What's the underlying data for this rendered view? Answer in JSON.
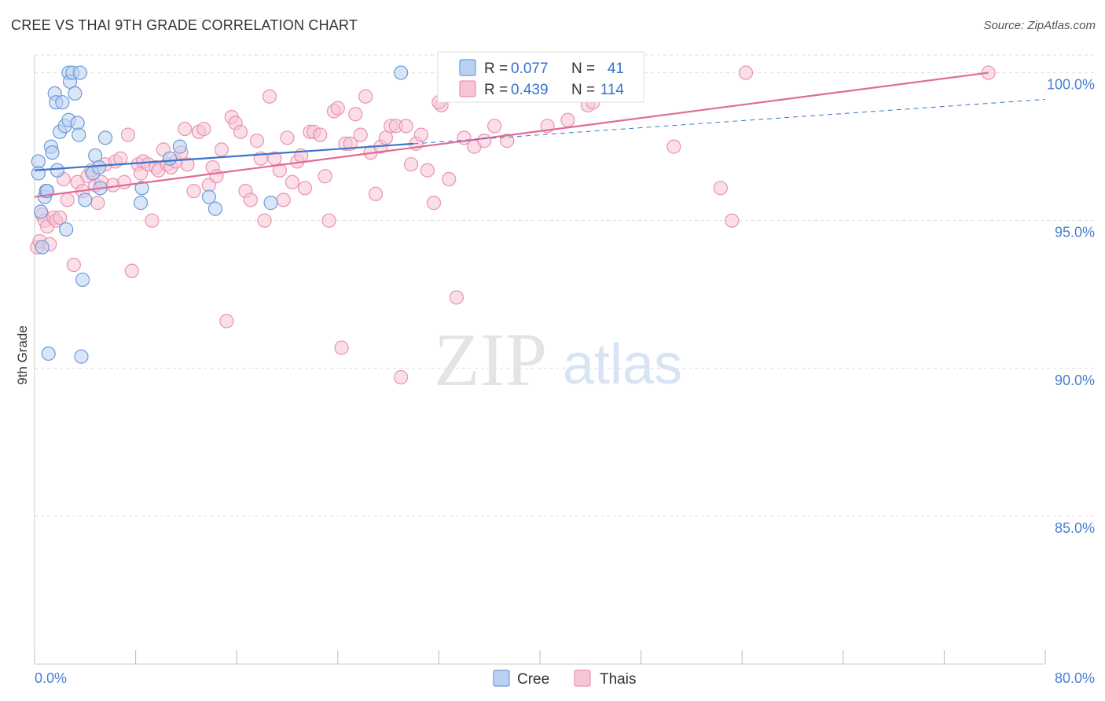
{
  "title": "CREE VS THAI 9TH GRADE CORRELATION CHART",
  "source": "Source: ZipAtlas.com",
  "watermark": {
    "zip": "ZIP",
    "atlas": "atlas"
  },
  "colors": {
    "cree_fill": "#b9d2f2",
    "cree_stroke": "#6f9ad8",
    "cree_line": "#3b74cc",
    "thai_fill": "#f8c5d6",
    "thai_stroke": "#e893b0",
    "thai_line": "#e06c93",
    "grid": "#dddddd",
    "tick_text": "#4a7fd0"
  },
  "legend_top": {
    "rows": [
      {
        "series": "Cree",
        "r_label": "R =",
        "r_value": "0.077",
        "n_label": "N =",
        "n_value": "41"
      },
      {
        "series": "Thais",
        "r_label": "R =",
        "r_value": "0.439",
        "n_label": "N =",
        "n_value": "114"
      }
    ]
  },
  "legend_bottom": [
    "Cree",
    "Thais"
  ],
  "chart_data": {
    "type": "scatter",
    "title": "CREE VS THAI 9TH GRADE CORRELATION CHART",
    "xlabel": "",
    "ylabel": "9th Grade",
    "xlim": [
      0,
      80
    ],
    "ylim": [
      80,
      100.6
    ],
    "x_tick_labels": [
      "0.0%",
      "80.0%"
    ],
    "y_ticks": [
      85,
      90,
      95,
      100
    ],
    "y_tick_labels": [
      "85.0%",
      "90.0%",
      "95.0%",
      "100.0%"
    ],
    "grid": true,
    "legend_position": "top-center",
    "series": [
      {
        "name": "Cree",
        "r": 0.077,
        "n": 41,
        "trend": {
          "x": [
            0,
            30
          ],
          "y": [
            96.7,
            97.6
          ],
          "extended_x": [
            30,
            80
          ],
          "extended_y": [
            97.6,
            99.1
          ]
        },
        "points": [
          [
            0.3,
            97.0
          ],
          [
            0.3,
            96.6
          ],
          [
            0.5,
            95.3
          ],
          [
            0.6,
            94.1
          ],
          [
            0.8,
            95.8
          ],
          [
            0.9,
            96.0
          ],
          [
            1.0,
            96.0
          ],
          [
            1.1,
            90.5
          ],
          [
            1.3,
            97.5
          ],
          [
            1.4,
            97.3
          ],
          [
            1.6,
            99.3
          ],
          [
            1.7,
            99.0
          ],
          [
            1.8,
            96.7
          ],
          [
            2.0,
            98.0
          ],
          [
            2.2,
            99.0
          ],
          [
            2.4,
            98.2
          ],
          [
            2.5,
            94.7
          ],
          [
            2.7,
            98.4
          ],
          [
            2.7,
            100.0
          ],
          [
            2.8,
            99.7
          ],
          [
            3.0,
            100.0
          ],
          [
            3.2,
            99.3
          ],
          [
            3.4,
            98.3
          ],
          [
            3.5,
            97.9
          ],
          [
            3.6,
            100.0
          ],
          [
            3.7,
            90.4
          ],
          [
            3.8,
            93.0
          ],
          [
            4.0,
            95.7
          ],
          [
            4.6,
            96.6
          ],
          [
            4.8,
            97.2
          ],
          [
            5.1,
            96.8
          ],
          [
            5.2,
            96.1
          ],
          [
            5.6,
            97.8
          ],
          [
            8.4,
            95.6
          ],
          [
            8.5,
            96.1
          ],
          [
            10.7,
            97.1
          ],
          [
            11.5,
            97.5
          ],
          [
            13.8,
            95.8
          ],
          [
            14.3,
            95.4
          ],
          [
            18.7,
            95.6
          ],
          [
            29.0,
            100.0
          ]
        ]
      },
      {
        "name": "Thais",
        "r": 0.439,
        "n": 114,
        "trend": {
          "x": [
            0,
            75.5
          ],
          "y": [
            95.8,
            100.0
          ]
        },
        "points": [
          [
            0.2,
            94.1
          ],
          [
            0.4,
            94.3
          ],
          [
            0.6,
            95.2
          ],
          [
            0.8,
            95.0
          ],
          [
            1.0,
            94.8
          ],
          [
            1.2,
            94.2
          ],
          [
            1.5,
            95.1
          ],
          [
            1.7,
            95.0
          ],
          [
            2.0,
            95.1
          ],
          [
            2.3,
            96.4
          ],
          [
            2.6,
            95.7
          ],
          [
            3.1,
            93.5
          ],
          [
            3.4,
            96.3
          ],
          [
            3.8,
            96.0
          ],
          [
            4.2,
            96.5
          ],
          [
            4.5,
            96.7
          ],
          [
            4.8,
            96.2
          ],
          [
            5.0,
            95.6
          ],
          [
            5.3,
            96.3
          ],
          [
            5.6,
            96.9
          ],
          [
            6.2,
            96.2
          ],
          [
            6.4,
            97.0
          ],
          [
            6.8,
            97.1
          ],
          [
            7.1,
            96.3
          ],
          [
            7.4,
            97.9
          ],
          [
            7.7,
            93.3
          ],
          [
            8.2,
            96.9
          ],
          [
            8.4,
            96.6
          ],
          [
            8.6,
            97.0
          ],
          [
            9.0,
            96.9
          ],
          [
            9.3,
            95.0
          ],
          [
            9.6,
            96.8
          ],
          [
            9.8,
            96.7
          ],
          [
            10.2,
            97.4
          ],
          [
            10.5,
            96.9
          ],
          [
            10.8,
            96.8
          ],
          [
            11.2,
            97.0
          ],
          [
            11.6,
            97.3
          ],
          [
            11.9,
            98.1
          ],
          [
            12.1,
            96.9
          ],
          [
            12.6,
            96.0
          ],
          [
            13.0,
            98.0
          ],
          [
            13.4,
            98.1
          ],
          [
            13.8,
            96.2
          ],
          [
            14.1,
            96.8
          ],
          [
            14.4,
            96.5
          ],
          [
            14.8,
            97.4
          ],
          [
            15.2,
            91.6
          ],
          [
            15.6,
            98.5
          ],
          [
            15.9,
            98.3
          ],
          [
            16.3,
            98.0
          ],
          [
            16.7,
            96.0
          ],
          [
            17.1,
            95.7
          ],
          [
            17.6,
            97.7
          ],
          [
            17.9,
            97.1
          ],
          [
            18.2,
            95.0
          ],
          [
            18.6,
            99.2
          ],
          [
            19.0,
            97.1
          ],
          [
            19.4,
            96.7
          ],
          [
            19.7,
            95.7
          ],
          [
            20.0,
            97.8
          ],
          [
            20.4,
            96.3
          ],
          [
            20.8,
            97.0
          ],
          [
            21.1,
            97.2
          ],
          [
            21.4,
            96.1
          ],
          [
            21.8,
            98.0
          ],
          [
            22.1,
            98.0
          ],
          [
            22.6,
            97.9
          ],
          [
            23.0,
            96.5
          ],
          [
            23.3,
            95.0
          ],
          [
            23.7,
            98.7
          ],
          [
            24.0,
            98.8
          ],
          [
            24.3,
            90.7
          ],
          [
            24.6,
            97.6
          ],
          [
            25.0,
            97.6
          ],
          [
            25.4,
            98.6
          ],
          [
            25.8,
            97.9
          ],
          [
            26.2,
            99.2
          ],
          [
            26.6,
            97.3
          ],
          [
            27.0,
            95.9
          ],
          [
            27.4,
            97.5
          ],
          [
            27.8,
            97.8
          ],
          [
            28.2,
            98.2
          ],
          [
            28.6,
            98.2
          ],
          [
            29.0,
            89.7
          ],
          [
            29.4,
            98.2
          ],
          [
            29.8,
            96.9
          ],
          [
            30.2,
            97.6
          ],
          [
            30.6,
            97.9
          ],
          [
            31.1,
            96.7
          ],
          [
            31.6,
            95.6
          ],
          [
            32.2,
            98.9
          ],
          [
            32.8,
            96.4
          ],
          [
            33.4,
            92.4
          ],
          [
            34.0,
            97.8
          ],
          [
            34.8,
            97.5
          ],
          [
            35.6,
            97.7
          ],
          [
            36.4,
            98.2
          ],
          [
            37.4,
            97.7
          ],
          [
            38.6,
            100.0
          ],
          [
            40.6,
            98.2
          ],
          [
            42.2,
            98.4
          ],
          [
            43.8,
            98.9
          ],
          [
            44.2,
            99.0
          ],
          [
            50.6,
            97.5
          ],
          [
            54.3,
            96.1
          ],
          [
            55.2,
            95.0
          ],
          [
            56.3,
            100.0
          ],
          [
            75.5,
            100.0
          ],
          [
            35.0,
            100.0
          ],
          [
            33.5,
            99.5
          ],
          [
            32.0,
            99.0
          ],
          [
            38.0,
            100.0
          ],
          [
            37.0,
            99.5
          ]
        ]
      }
    ]
  }
}
